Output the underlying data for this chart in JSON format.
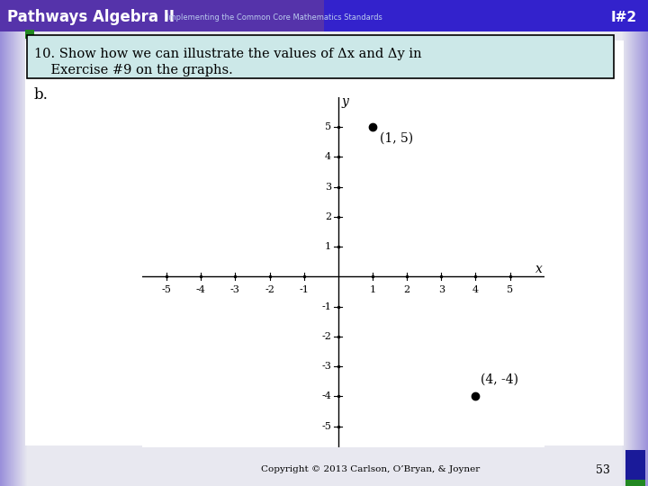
{
  "title_text_line1": "10. Show how we can illustrate the values of Δx and Δy in",
  "title_text_line2": "    Exercise #9 on the graphs.",
  "label_b": "b.",
  "point1": [
    1,
    5
  ],
  "point1_label": "(1, 5)",
  "point2": [
    4,
    -4
  ],
  "point2_label": "(4, -4)",
  "xlim": [
    -5.7,
    6.0
  ],
  "ylim": [
    -5.7,
    6.0
  ],
  "xticks": [
    -5,
    -4,
    -3,
    -2,
    -1,
    1,
    2,
    3,
    4,
    5
  ],
  "yticks": [
    -5,
    -4,
    -3,
    -2,
    -1,
    1,
    2,
    3,
    4,
    5
  ],
  "xlabel": "x",
  "ylabel": "y",
  "bg_color": "#f0f0f0",
  "slide_bg": "#ffffff",
  "header_bg_left": "#5555aa",
  "header_bg_right": "#2233cc",
  "title_box_bg": "#cce8e8",
  "title_box_border": "#000000",
  "copyright": "Copyright © 2013 Carlson, O’Bryan, & Joyner",
  "page_num": "53",
  "id_label": "I#2",
  "header_title": "Pathways Algebra II",
  "header_subtitle": "Implementing the Common Core Mathematics Standards",
  "point_color": "#000000",
  "point_size": 6,
  "axis_color": "#000000",
  "tick_fontsize": 8,
  "label_fontsize": 10,
  "footer_blue": "#1a1a99",
  "footer_green": "#2a6a2a",
  "left_strip_color": "#4444aa",
  "right_strip_color": "#4444aa"
}
